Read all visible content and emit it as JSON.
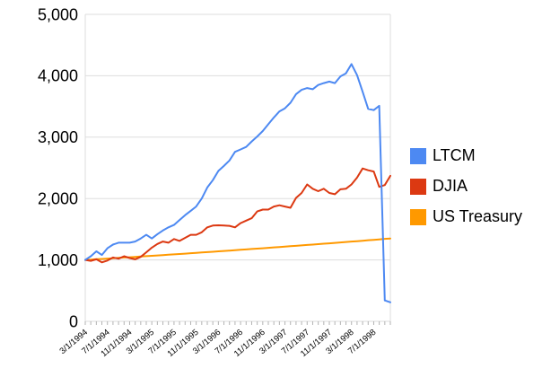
{
  "chart_data": {
    "type": "line",
    "title": "",
    "xlabel": "",
    "ylabel": "",
    "ylim": [
      0,
      5000
    ],
    "grid": "horizontal",
    "grid_color": "#dddddd",
    "tick_color": "#b3b3b3",
    "axis_text_color": "#000000",
    "legend_position": "right",
    "x_monthly_points": 56,
    "x_first_month": "3/1/1994",
    "x_label_every_n_months": 4,
    "x_tick_labels": [
      "3/1/1994",
      "7/1/1994",
      "11/1/1994",
      "3/1/1995",
      "7/1/1995",
      "11/1/1995",
      "3/1/1996",
      "7/1/1996",
      "11/1/1996",
      "3/1/1997",
      "7/1/1997",
      "11/1/1997",
      "3/1/1998",
      "7/1/1998"
    ],
    "y_tick_labels": [
      "0",
      "1,000",
      "2,000",
      "3,000",
      "4,000",
      "5,000"
    ],
    "series": [
      {
        "name": "LTCM",
        "color": "#4d89f2",
        "values": [
          1000,
          1060,
          1140,
          1080,
          1190,
          1250,
          1280,
          1280,
          1280,
          1300,
          1350,
          1410,
          1350,
          1420,
          1480,
          1530,
          1570,
          1650,
          1730,
          1800,
          1870,
          2000,
          2180,
          2300,
          2450,
          2530,
          2620,
          2760,
          2800,
          2840,
          2930,
          3010,
          3100,
          3210,
          3320,
          3420,
          3470,
          3560,
          3700,
          3770,
          3800,
          3780,
          3850,
          3880,
          3905,
          3880,
          3990,
          4040,
          4190,
          4010,
          3740,
          3460,
          3440,
          3510,
          340,
          310
        ]
      },
      {
        "name": "DJIA",
        "color": "#dc3912",
        "values": [
          1000,
          985,
          1010,
          960,
          990,
          1040,
          1020,
          1060,
          1030,
          1010,
          1050,
          1125,
          1200,
          1260,
          1300,
          1280,
          1340,
          1310,
          1360,
          1410,
          1410,
          1450,
          1530,
          1560,
          1565,
          1560,
          1555,
          1530,
          1600,
          1640,
          1680,
          1790,
          1820,
          1820,
          1870,
          1890,
          1870,
          1850,
          2010,
          2090,
          2230,
          2160,
          2120,
          2160,
          2090,
          2070,
          2150,
          2160,
          2230,
          2340,
          2490,
          2460,
          2440,
          2190,
          2220,
          2370
        ]
      },
      {
        "name": "US Treasury",
        "color": "#ff9900",
        "values": [
          1000,
          1005,
          1011,
          1016,
          1022,
          1028,
          1033,
          1039,
          1044,
          1050,
          1056,
          1062,
          1067,
          1073,
          1079,
          1085,
          1091,
          1097,
          1103,
          1109,
          1115,
          1121,
          1127,
          1133,
          1140,
          1146,
          1152,
          1158,
          1165,
          1171,
          1178,
          1184,
          1190,
          1197,
          1204,
          1210,
          1217,
          1223,
          1230,
          1237,
          1244,
          1250,
          1257,
          1264,
          1271,
          1278,
          1285,
          1292,
          1299,
          1306,
          1313,
          1321,
          1328,
          1335,
          1343,
          1350
        ]
      }
    ]
  }
}
